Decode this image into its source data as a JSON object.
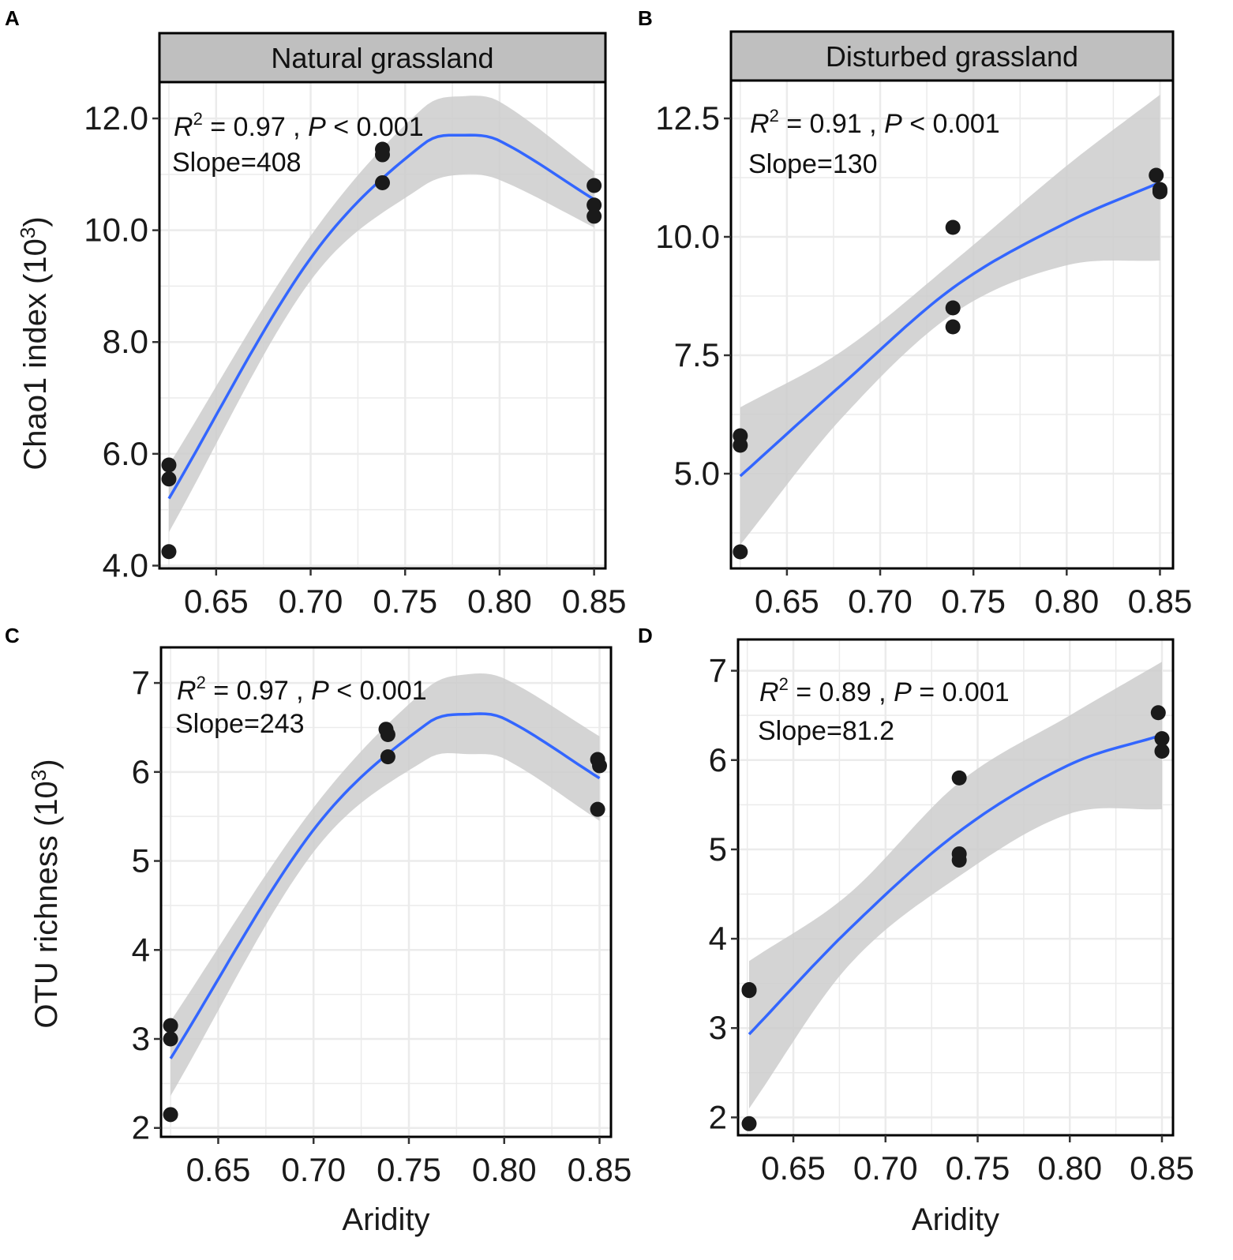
{
  "chart_data": [
    {
      "type": "scatter",
      "panel": "A",
      "strip": "Natural grassland",
      "xlabel": "",
      "ylabel": "Chao1 index (10³)",
      "ylabel_parts": {
        "main": "Chao1 index (10",
        "sup": "3",
        "close": ")"
      },
      "xlim": [
        0.62,
        0.856
      ],
      "ylim": [
        3.95,
        12.65
      ],
      "xticks": [
        0.65,
        0.7,
        0.75,
        0.8,
        0.85
      ],
      "xtick_labels": [
        "0.65",
        "0.70",
        "0.75",
        "0.80",
        "0.85"
      ],
      "yticks": [
        4,
        6,
        8,
        10,
        12
      ],
      "ytick_labels": [
        "4.0",
        "6.0",
        "8.0",
        "10.0",
        "12.0"
      ],
      "points": [
        {
          "x": 0.625,
          "y": 5.8
        },
        {
          "x": 0.625,
          "y": 5.55
        },
        {
          "x": 0.625,
          "y": 4.25
        },
        {
          "x": 0.738,
          "y": 11.45
        },
        {
          "x": 0.738,
          "y": 11.35
        },
        {
          "x": 0.738,
          "y": 10.85
        },
        {
          "x": 0.85,
          "y": 10.8
        },
        {
          "x": 0.85,
          "y": 10.45
        },
        {
          "x": 0.85,
          "y": 10.25
        }
      ],
      "fit": {
        "x": [
          0.625,
          0.7,
          0.76,
          0.782,
          0.8,
          0.85
        ],
        "y": [
          5.2,
          9.5,
          11.55,
          11.7,
          11.6,
          10.55
        ]
      },
      "ci_upper": [
        5.8,
        9.9,
        12.2,
        12.4,
        12.3,
        11.05
      ],
      "ci_lower": [
        4.6,
        9.1,
        10.8,
        11.0,
        10.9,
        10.05
      ],
      "stats": {
        "r2_symbol": "R",
        "r2_sup": "2",
        "r2_value": " = 0.97 , ",
        "p_symbol": "P",
        "p_value": " < 0.001",
        "slope": "Slope=408"
      }
    },
    {
      "type": "scatter",
      "panel": "B",
      "strip": "Disturbed grassland",
      "xlabel": "",
      "ylabel": "",
      "xlim": [
        0.62,
        0.857
      ],
      "ylim": [
        3.0,
        13.3
      ],
      "xticks": [
        0.65,
        0.7,
        0.75,
        0.8,
        0.85
      ],
      "xtick_labels": [
        "0.65",
        "0.70",
        "0.75",
        "0.80",
        "0.85"
      ],
      "yticks": [
        5,
        7.5,
        10,
        12.5
      ],
      "ytick_labels": [
        "5.0",
        "7.5",
        "10.0",
        "12.5"
      ],
      "points": [
        {
          "x": 0.625,
          "y": 5.8
        },
        {
          "x": 0.625,
          "y": 5.6
        },
        {
          "x": 0.625,
          "y": 3.35
        },
        {
          "x": 0.739,
          "y": 10.2
        },
        {
          "x": 0.739,
          "y": 8.5
        },
        {
          "x": 0.739,
          "y": 8.1
        },
        {
          "x": 0.848,
          "y": 11.3
        },
        {
          "x": 0.85,
          "y": 11.0
        },
        {
          "x": 0.85,
          "y": 10.95
        }
      ],
      "fit": {
        "x": [
          0.625,
          0.68,
          0.74,
          0.8,
          0.85
        ],
        "y": [
          4.95,
          6.9,
          8.95,
          10.3,
          11.15
        ]
      },
      "ci_upper": [
        6.4,
        7.6,
        9.5,
        11.5,
        13.0
      ],
      "ci_lower": [
        3.5,
        6.2,
        8.4,
        9.4,
        9.5
      ],
      "stats": {
        "r2_symbol": "R",
        "r2_sup": "2",
        "r2_value": " = 0.91 , ",
        "p_symbol": "P",
        "p_value": " < 0.001",
        "slope": "Slope=130"
      }
    },
    {
      "type": "scatter",
      "panel": "C",
      "strip": "",
      "xlabel": "Aridity",
      "ylabel": "OTU richness (10³)",
      "ylabel_parts": {
        "main": "OTU richness  (10",
        "sup": "3",
        "close": ")"
      },
      "xlim": [
        0.62,
        0.856
      ],
      "ylim": [
        1.9,
        7.4
      ],
      "xticks": [
        0.65,
        0.7,
        0.75,
        0.8,
        0.85
      ],
      "xtick_labels": [
        "0.65",
        "0.70",
        "0.75",
        "0.80",
        "0.85"
      ],
      "yticks": [
        2,
        3,
        4,
        5,
        6,
        7
      ],
      "ytick_labels": [
        "2",
        "3",
        "4",
        "5",
        "6",
        "7"
      ],
      "points": [
        {
          "x": 0.625,
          "y": 3.15
        },
        {
          "x": 0.625,
          "y": 3.0
        },
        {
          "x": 0.625,
          "y": 2.15
        },
        {
          "x": 0.738,
          "y": 6.48
        },
        {
          "x": 0.739,
          "y": 6.42
        },
        {
          "x": 0.739,
          "y": 6.17
        },
        {
          "x": 0.849,
          "y": 6.14
        },
        {
          "x": 0.85,
          "y": 6.07
        },
        {
          "x": 0.849,
          "y": 5.58
        }
      ],
      "fit": {
        "x": [
          0.625,
          0.7,
          0.76,
          0.782,
          0.8,
          0.85
        ],
        "y": [
          2.78,
          5.35,
          6.55,
          6.65,
          6.6,
          5.93
        ]
      },
      "ci_upper": [
        3.2,
        5.6,
        6.95,
        7.1,
        7.05,
        6.4
      ],
      "ci_lower": [
        2.36,
        5.1,
        6.15,
        6.2,
        6.15,
        5.45
      ],
      "stats": {
        "r2_symbol": "R",
        "r2_sup": "2",
        "r2_value": " = 0.97 , ",
        "p_symbol": "P",
        "p_value": " < 0.001",
        "slope": "Slope=243"
      }
    },
    {
      "type": "scatter",
      "panel": "D",
      "strip": "",
      "xlabel": "Aridity",
      "ylabel": "",
      "xlim": [
        0.62,
        0.856
      ],
      "ylim": [
        1.8,
        7.35
      ],
      "xticks": [
        0.65,
        0.7,
        0.75,
        0.8,
        0.85
      ],
      "xtick_labels": [
        "0.65",
        "0.70",
        "0.75",
        "0.80",
        "0.85"
      ],
      "yticks": [
        2,
        3,
        4,
        5,
        6,
        7
      ],
      "ytick_labels": [
        "2",
        "3",
        "4",
        "5",
        "6",
        "7"
      ],
      "points": [
        {
          "x": 0.626,
          "y": 3.43
        },
        {
          "x": 0.626,
          "y": 3.42
        },
        {
          "x": 0.626,
          "y": 1.93
        },
        {
          "x": 0.74,
          "y": 5.8
        },
        {
          "x": 0.74,
          "y": 4.95
        },
        {
          "x": 0.74,
          "y": 4.88
        },
        {
          "x": 0.848,
          "y": 6.53
        },
        {
          "x": 0.85,
          "y": 6.24
        },
        {
          "x": 0.85,
          "y": 6.1
        }
      ],
      "fit": {
        "x": [
          0.626,
          0.68,
          0.74,
          0.8,
          0.85
        ],
        "y": [
          2.93,
          4.1,
          5.2,
          5.95,
          6.28
        ]
      },
      "ci_upper": [
        3.75,
        4.5,
        5.75,
        6.5,
        7.1
      ],
      "ci_lower": [
        2.1,
        3.7,
        4.7,
        5.4,
        5.45
      ],
      "stats": {
        "r2_symbol": "R",
        "r2_sup": "2",
        "r2_value": " = 0.89 , ",
        "p_symbol": "P",
        "p_value": " = 0.001",
        "slope": "Slope=81.2"
      }
    }
  ],
  "colors": {
    "fit_line": "#3366ff",
    "ci_band": "#cccccc",
    "point": "#1a1a1a",
    "grid": "#ebebeb",
    "strip_fill": "#bfbfbf"
  }
}
